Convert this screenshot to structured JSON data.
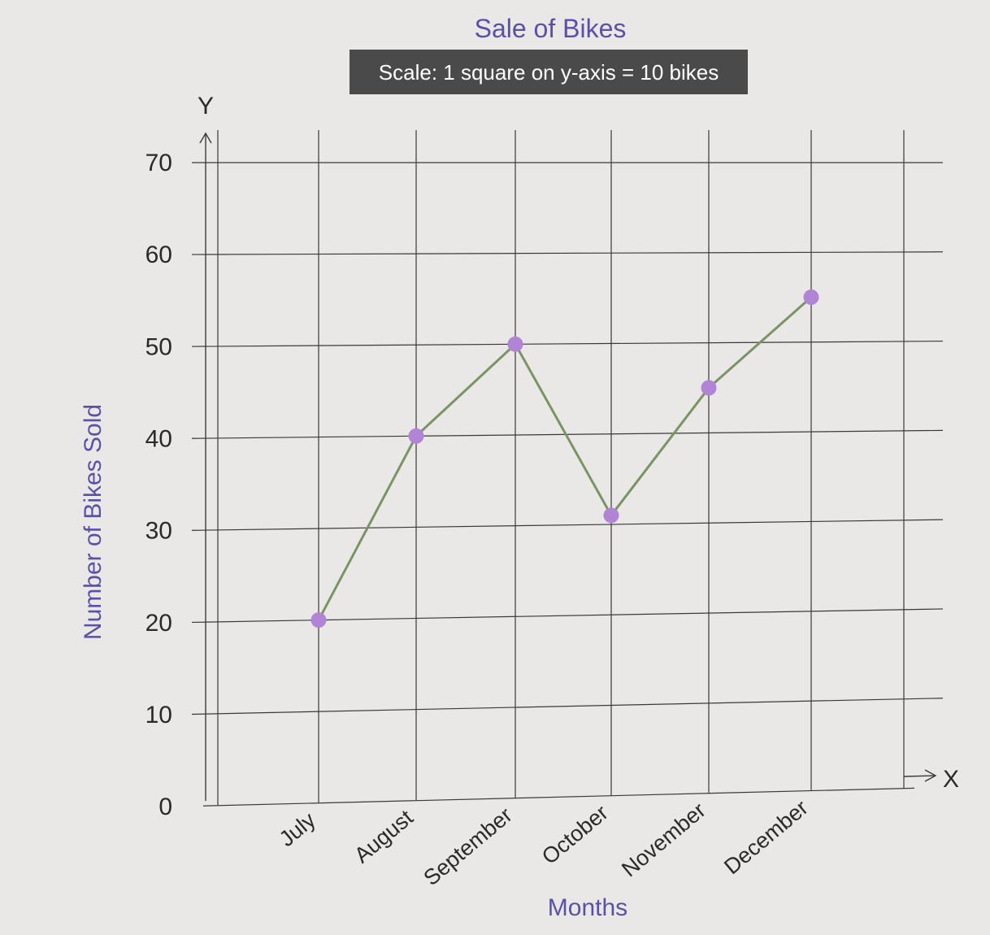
{
  "chart_data": {
    "type": "line",
    "title": "Sale of Bikes",
    "subtitle": "Scale: 1 square on y-axis = 10 bikes",
    "xlabel": "Months",
    "ylabel": "Number of Bikes Sold",
    "x_axis_letter": "X",
    "y_axis_letter": "Y",
    "categories": [
      "July",
      "August",
      "September",
      "October",
      "November",
      "December"
    ],
    "y_ticks": [
      "0",
      "10",
      "20",
      "30",
      "40",
      "50",
      "60",
      "70"
    ],
    "values": [
      20,
      40,
      50,
      31,
      45,
      55
    ],
    "ylim": [
      0,
      70
    ],
    "grid": true,
    "colors": {
      "line": "#7a9465",
      "marker": "#b184d6",
      "title": "#5a51a6",
      "axis_label": "#5a51a6",
      "subtitle_bg": "#4a4a4a",
      "subtitle_text": "#ffffff",
      "grid": "#3a3a3a",
      "text": "#2a2a2a"
    }
  }
}
